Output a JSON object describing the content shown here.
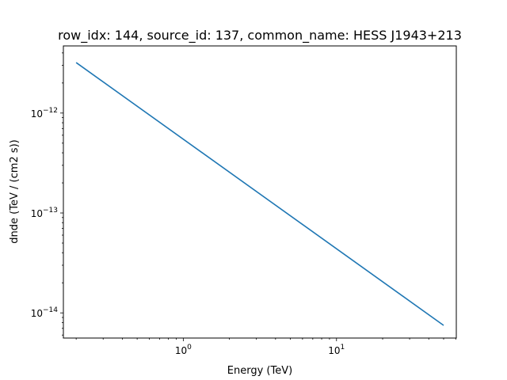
{
  "chart_data": {
    "type": "line",
    "title": "row_idx: 144, source_id: 137, common_name: HESS J1943+213",
    "xlabel": "Energy (TeV)",
    "ylabel": "dnde (TeV / (cm2 s))",
    "xscale": "log",
    "yscale": "log",
    "xlim": [
      0.165,
      60.5
    ],
    "ylim": [
      5.6e-15,
      4.7e-12
    ],
    "grid": false,
    "x_ticks": [
      {
        "value": 1,
        "base": "10",
        "exp": "0"
      },
      {
        "value": 10,
        "base": "10",
        "exp": "1"
      }
    ],
    "y_ticks": [
      {
        "value": 1e-12,
        "base": "10",
        "exp": "−12"
      },
      {
        "value": 1e-13,
        "base": "10",
        "exp": "−13"
      },
      {
        "value": 1e-14,
        "base": "10",
        "exp": "−14"
      }
    ],
    "series": [
      {
        "color": "#1f77b4",
        "x": [
          0.2,
          50
        ],
        "y": [
          3.2e-12,
          7.5e-15
        ]
      }
    ]
  }
}
